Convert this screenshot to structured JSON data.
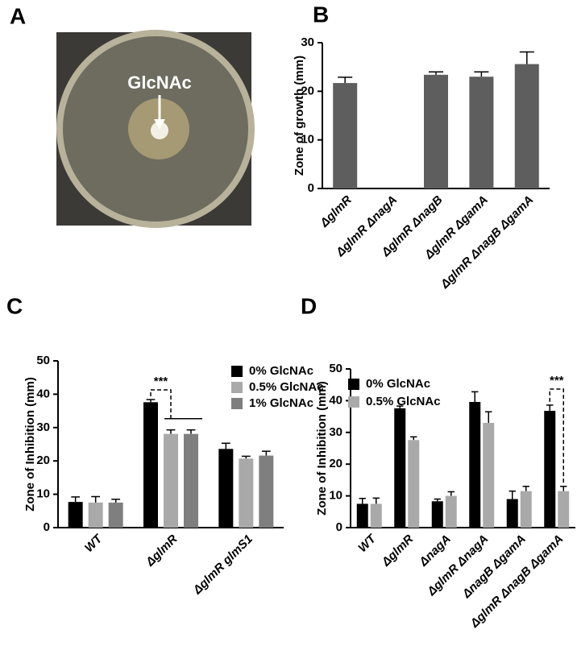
{
  "chart_data": [
    {
      "type": "image",
      "panel": "A",
      "annotation": "GlcNAc"
    },
    {
      "type": "bar",
      "panel": "B",
      "ylabel": "Zone of growth (mm)",
      "categories": [
        "ΔglmR",
        "ΔglmR ΔnagA",
        "ΔglmR ΔnagB",
        "ΔglmR ΔgamA",
        "ΔglmR ΔnagB ΔgamA"
      ],
      "values": [
        21.7,
        0,
        23.4,
        23.0,
        25.6
      ],
      "errors": [
        1.2,
        0,
        0.6,
        1.0,
        2.5
      ],
      "color": "#5e5e5e",
      "ylim": [
        0,
        30
      ],
      "yticks": [
        0,
        10,
        20,
        30
      ]
    },
    {
      "type": "bar",
      "panel": "C",
      "ylabel": "Zone of Inhibition (mm)",
      "categories": [
        "WT",
        "ΔglmR",
        "ΔglmR glmS1"
      ],
      "series": [
        {
          "name": "0% GlcNAc",
          "color": "#000000",
          "values": [
            7.7,
            37.6,
            23.6
          ],
          "errors": [
            1.5,
            0.8,
            1.7
          ]
        },
        {
          "name": "0.5% GlcNAc",
          "color": "#a9a9a9",
          "values": [
            7.5,
            28.1,
            20.7
          ],
          "errors": [
            1.8,
            1.2,
            0.7
          ]
        },
        {
          "name": "1% GlcNAc",
          "color": "#7f7f7f",
          "values": [
            7.5,
            28.1,
            21.6
          ],
          "errors": [
            1.0,
            1.2,
            1.3
          ]
        }
      ],
      "ylim": [
        0,
        50
      ],
      "yticks": [
        0,
        10,
        20,
        30,
        40,
        50
      ],
      "annotation": "***"
    },
    {
      "type": "bar",
      "panel": "D",
      "ylabel": "Zone of Inhibition (mm)",
      "categories": [
        "WT",
        "ΔglmR",
        "ΔnagA",
        "ΔglmR ΔnagA",
        "ΔnagB ΔgamA",
        "ΔglmR ΔnagB ΔgamA"
      ],
      "series": [
        {
          "name": "0% GlcNAc",
          "color": "#000000",
          "values": [
            7.5,
            37.6,
            8.3,
            39.6,
            9.0,
            36.8
          ],
          "errors": [
            1.7,
            0.7,
            0.7,
            3.2,
            2.5,
            1.8
          ]
        },
        {
          "name": "0.5% GlcNAc",
          "color": "#a9a9a9",
          "values": [
            7.5,
            27.6,
            10.0,
            33.0,
            11.5,
            11.5
          ],
          "errors": [
            1.8,
            1.0,
            1.3,
            3.5,
            1.5,
            1.5
          ]
        }
      ],
      "ylim": [
        0,
        50
      ],
      "yticks": [
        0,
        10,
        20,
        30,
        40,
        50
      ],
      "annotation": "***"
    }
  ]
}
